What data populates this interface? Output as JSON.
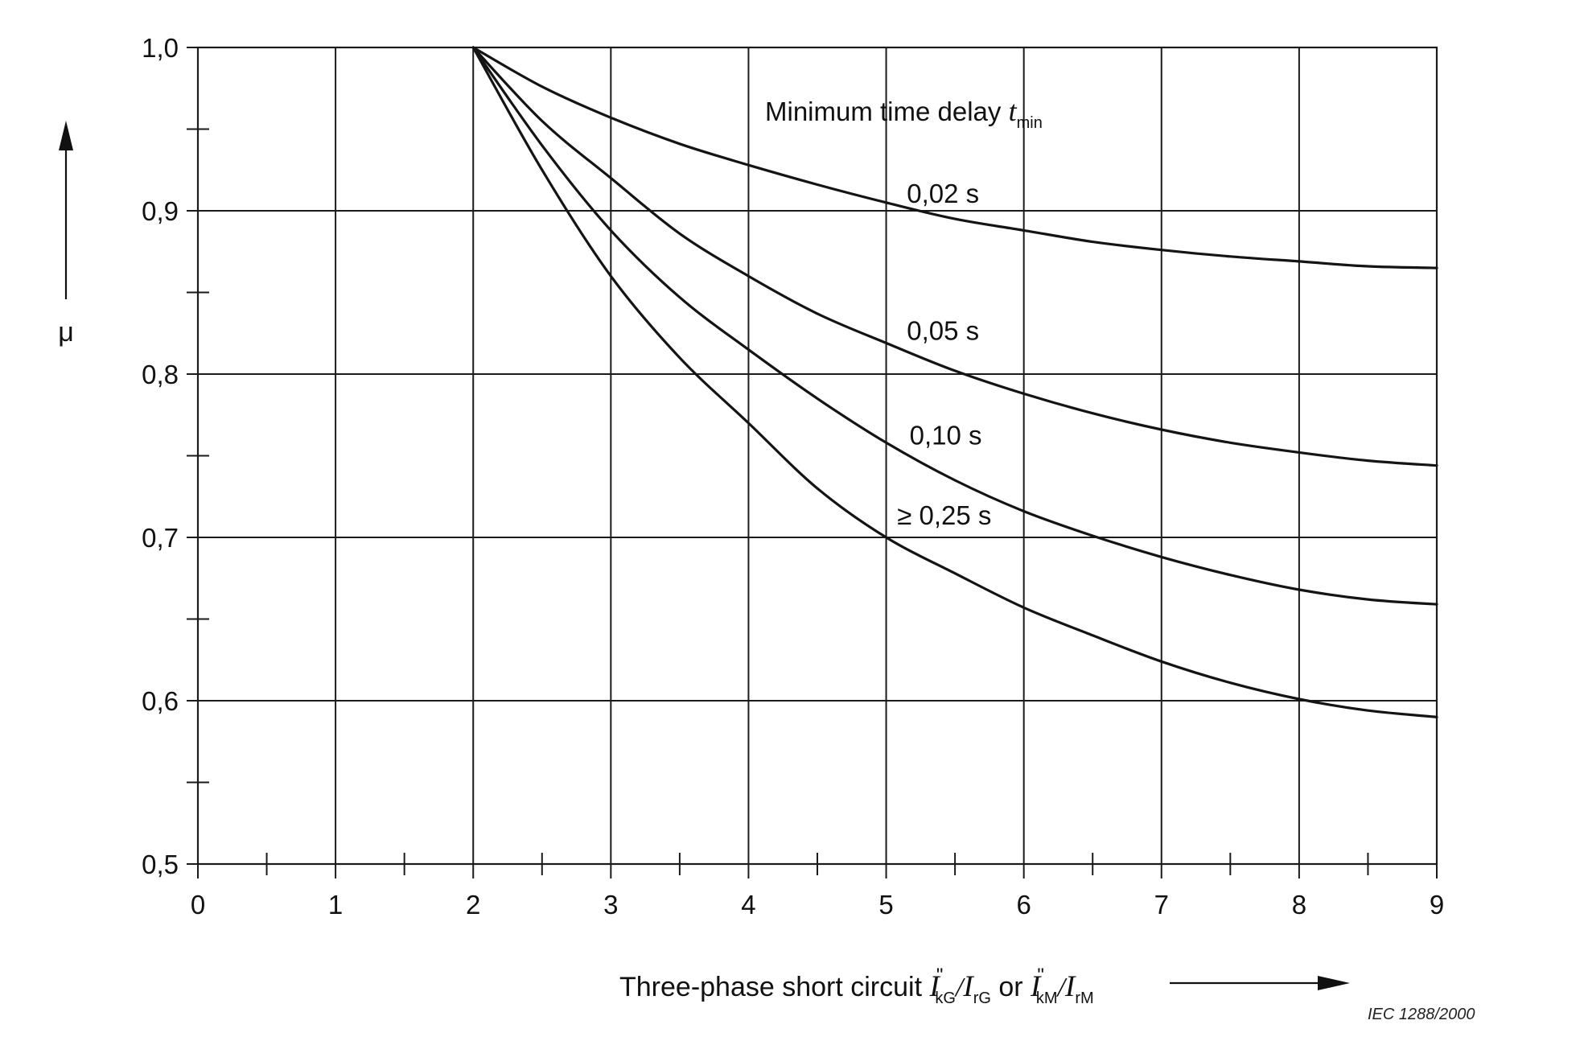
{
  "chart_data": {
    "type": "line",
    "title": "",
    "ylabel": "μ",
    "xlabel": {
      "prefix": "Three-phase short circuit ",
      "sym1": "I",
      "sup1": "\"",
      "sub1": "kG",
      "sep1": "/",
      "sym2": "I",
      "sub2": "rG",
      "connector": " or ",
      "sym3": "I",
      "sup3": "\"",
      "sub3": "kM",
      "sep2": "/",
      "sym4": "I",
      "sub4": "rM"
    },
    "xlim": [
      0,
      9
    ],
    "ylim": [
      0.5,
      1.0
    ],
    "x_ticks": [
      0,
      1,
      2,
      3,
      4,
      5,
      6,
      7,
      8,
      9
    ],
    "x_tick_labels": [
      "0",
      "1",
      "2",
      "3",
      "4",
      "5",
      "6",
      "7",
      "8",
      "9"
    ],
    "x_minor_ticks": [
      0.5,
      1.5,
      2.5,
      3.5,
      4.5,
      5.5,
      6.5,
      7.5,
      8.5
    ],
    "y_ticks": [
      0.5,
      0.6,
      0.7,
      0.8,
      0.9,
      1.0
    ],
    "y_tick_labels": [
      "0,5",
      "0,6",
      "0,7",
      "0,8",
      "0,9",
      "1,0"
    ],
    "y_minor_ticks": [
      0.55,
      0.65,
      0.75,
      0.85,
      0.95
    ],
    "grid": true,
    "legend_title": {
      "text": "Minimum time delay ",
      "sym": "t",
      "sub": "min"
    },
    "series": [
      {
        "name": "0,02 s",
        "x": [
          2,
          2.5,
          3,
          3.5,
          4,
          4.5,
          5,
          5.5,
          6,
          6.5,
          7,
          7.5,
          8,
          8.5,
          9
        ],
        "y": [
          1.0,
          0.976,
          0.957,
          0.941,
          0.928,
          0.916,
          0.905,
          0.895,
          0.888,
          0.881,
          0.876,
          0.872,
          0.869,
          0.866,
          0.865
        ]
      },
      {
        "name": "0,05 s",
        "x": [
          2,
          2.5,
          3,
          3.5,
          4,
          4.5,
          5,
          5.5,
          6,
          6.5,
          7,
          7.5,
          8,
          8.5,
          9
        ],
        "y": [
          1.0,
          0.955,
          0.92,
          0.886,
          0.86,
          0.837,
          0.819,
          0.802,
          0.788,
          0.776,
          0.766,
          0.758,
          0.752,
          0.747,
          0.744
        ]
      },
      {
        "name": "0,10 s",
        "x": [
          2,
          2.5,
          3,
          3.5,
          4,
          4.5,
          5,
          5.5,
          6,
          6.5,
          7,
          7.5,
          8,
          8.5,
          9
        ],
        "y": [
          1.0,
          0.94,
          0.888,
          0.847,
          0.815,
          0.785,
          0.758,
          0.735,
          0.716,
          0.701,
          0.688,
          0.677,
          0.668,
          0.662,
          0.659
        ]
      },
      {
        "name": "≥ 0,25 s",
        "x": [
          2,
          2.5,
          3,
          3.5,
          4,
          4.5,
          5,
          5.5,
          6,
          6.5,
          7,
          7.5,
          8,
          8.5,
          9
        ],
        "y": [
          1.0,
          0.925,
          0.86,
          0.81,
          0.77,
          0.73,
          0.7,
          0.678,
          0.657,
          0.64,
          0.624,
          0.611,
          0.601,
          0.594,
          0.59
        ]
      }
    ],
    "source_credit": "IEC   1288/2000"
  }
}
